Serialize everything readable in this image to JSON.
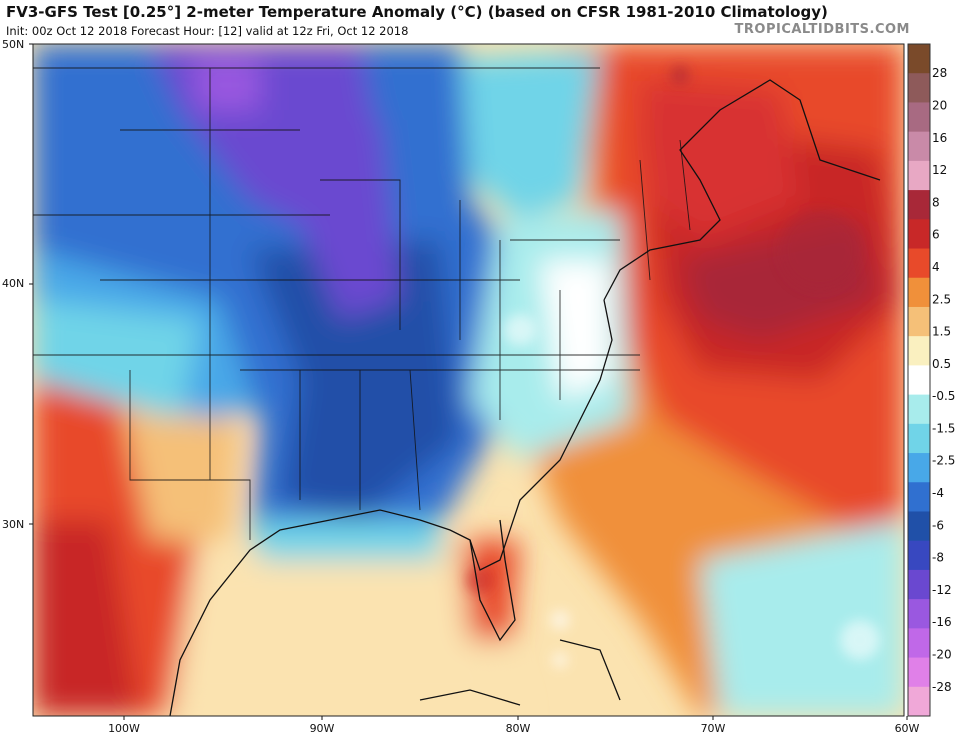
{
  "header": {
    "title": "FV3-GFS Test [0.25°] 2-meter Temperature Anomaly (°C) (based on CFSR 1981-2010 Climatology)",
    "subtitle": "Init: 00z Oct 12 2018   Forecast Hour: [12]   valid at 12z Fri, Oct 12 2018",
    "credit": "TROPICALTIDBITS.COM"
  },
  "map": {
    "lat_labels": [
      "50N",
      "40N",
      "30N"
    ],
    "lon_labels": [
      "100W",
      "90W",
      "80W",
      "70W",
      "60W"
    ],
    "regions": {
      "cold_core": "Central/eastern US (Plains, Midwest, Gulf states)",
      "warm_core": "Northeast US, Canadian Maritimes and western Atlantic",
      "warm_secondary": "Texas, Mexico and Florida peninsula"
    }
  },
  "colorbar": {
    "labels": [
      "28",
      "20",
      "16",
      "12",
      "8",
      "6",
      "4",
      "2.5",
      "1.5",
      "0.5",
      "-0.5",
      "-1.5",
      "-2.5",
      "-4",
      "-6",
      "-8",
      "-12",
      "-16",
      "-20",
      "-28"
    ],
    "colors": [
      "#7a4a2a",
      "#8e5a5a",
      "#a86a82",
      "#c98aa8",
      "#e8a8c4",
      "#a82838",
      "#c82828",
      "#e84a2a",
      "#f0903a",
      "#f5c078",
      "#faf0c0",
      "#ffffff",
      "#a8ecec",
      "#70d4e8",
      "#48a8e8",
      "#3070d0",
      "#2050a8",
      "#3848c0",
      "#6a48d0",
      "#9a58e0",
      "#c068e8",
      "#e080e8",
      "#f0a8d8"
    ]
  }
}
